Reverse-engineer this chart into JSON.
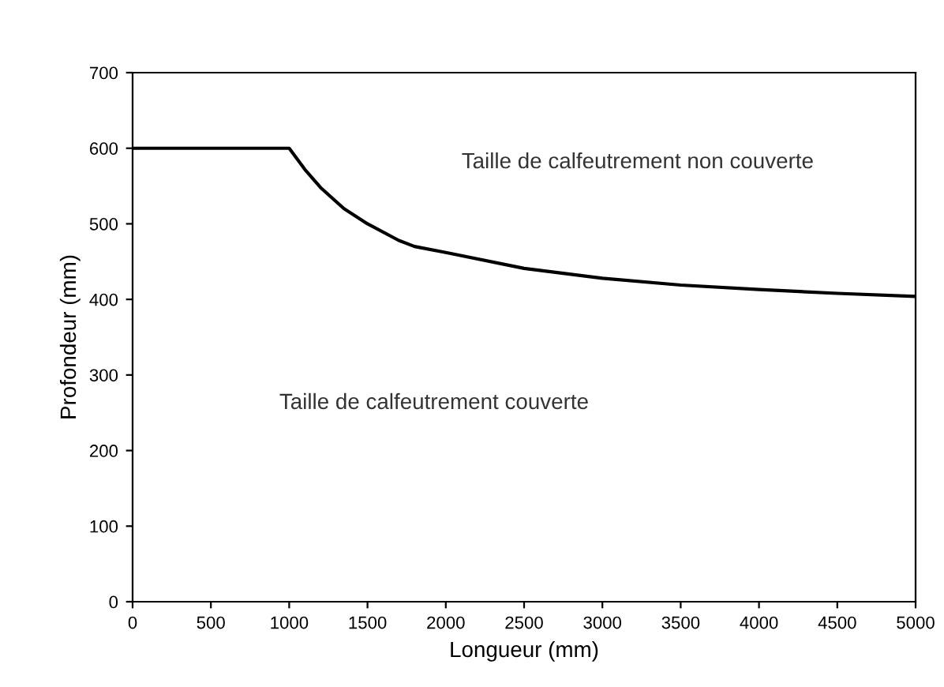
{
  "chart_data": {
    "type": "line",
    "xlabel": "Longueur (mm)",
    "ylabel": "Profondeur (mm)",
    "x": [
      0,
      500,
      1000,
      1100,
      1200,
      1350,
      1500,
      1700,
      1800,
      2000,
      2500,
      3000,
      3500,
      4000,
      4500,
      5000
    ],
    "series": [
      {
        "color": "#000000",
        "values": [
          600,
          600,
          600,
          572,
          548,
          520,
          500,
          478,
          470,
          462,
          441,
          428,
          419,
          413,
          408,
          404
        ]
      }
    ],
    "xlim": [
      0,
      5000
    ],
    "xticks": [
      0,
      500,
      1000,
      1500,
      2000,
      2500,
      3000,
      3500,
      4000,
      4500,
      5000
    ],
    "ylim": [
      0,
      700
    ],
    "yticks": [
      0,
      100,
      200,
      300,
      400,
      500,
      600,
      700
    ],
    "annotations": [
      "Taille de calfeutrement non couverte",
      "Taille de calfeutrement couverte"
    ],
    "grid": false,
    "marker": "none",
    "line_style": "solid"
  }
}
